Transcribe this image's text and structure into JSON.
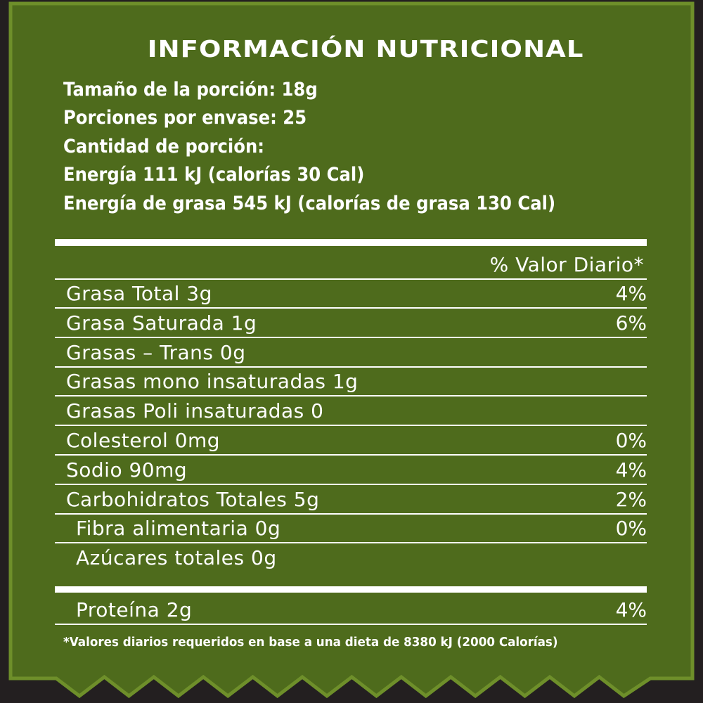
{
  "colors": {
    "background": "#231f20",
    "panel": "#4e6b1c",
    "panel_edge": "#6e8f2a",
    "text": "#ffffff"
  },
  "title": "INFORMACIÓN NUTRICIONAL",
  "serving": {
    "size": "Tamaño de la porción: 18g",
    "per_container": "Porciones por envase: 25",
    "amount_label": "Cantidad de porción:",
    "energy": "Energía 111 kJ (calorías 30 Cal)",
    "fat_energy": "Energía de grasa 545 kJ (calorías de grasa 130 Cal)"
  },
  "daily_value_header": "% Valor Diario*",
  "rows": [
    {
      "name": "Grasa Total 3g",
      "dv": "4%"
    },
    {
      "name": "Grasa Saturada 1g",
      "dv": "6%"
    },
    {
      "name": "Grasas – Trans 0g",
      "dv": ""
    },
    {
      "name": "Grasas mono insaturadas 1g",
      "dv": ""
    },
    {
      "name": "Grasas Poli insaturadas 0",
      "dv": ""
    },
    {
      "name": "Colesterol 0mg",
      "dv": "0%"
    },
    {
      "name": "Sodio 90mg",
      "dv": "4%"
    },
    {
      "name": "Carbohidratos Totales 5g",
      "dv": "2%"
    },
    {
      "name": "Fibra alimentaria 0g",
      "dv": "0%"
    },
    {
      "name": "Azúcares totales 0g",
      "dv": ""
    }
  ],
  "protein": {
    "name": "Proteína 2g",
    "dv": "4%"
  },
  "footnote": "*Valores diarios requeridos en base a una dieta de 8380 kJ (2000 Calorías)"
}
